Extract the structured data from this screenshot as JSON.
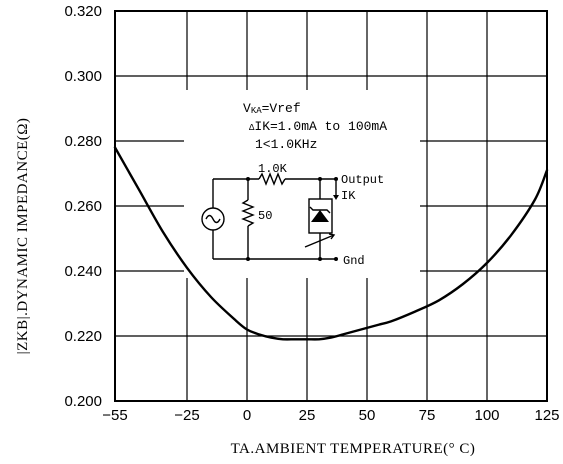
{
  "chart_data": {
    "type": "line",
    "xlabel": "TA.AMBIENT TEMPERATURE(° C)",
    "ylabel": "|ZKB|.DYNAMIC IMPEDANCE(Ω)",
    "xlim": [
      -55,
      125
    ],
    "ylim": [
      0.2,
      0.32
    ],
    "x_ticks": [
      "−55",
      "−25",
      "0",
      "25",
      "50",
      "75",
      "100",
      "125"
    ],
    "x_tick_values": [
      -55,
      -25,
      0,
      25,
      50,
      75,
      100,
      125
    ],
    "y_ticks": [
      "0.200",
      "0.220",
      "0.240",
      "0.260",
      "0.280",
      "0.300",
      "0.320"
    ],
    "y_tick_values": [
      0.2,
      0.22,
      0.24,
      0.26,
      0.28,
      0.3,
      0.32
    ],
    "grid": true,
    "series": [
      {
        "x": [
          -55,
          -45,
          -35,
          -25,
          -15,
          -5,
          0,
          5,
          10,
          15,
          20,
          25,
          30,
          35,
          40,
          45,
          50,
          55,
          60,
          70,
          80,
          90,
          100,
          110,
          120,
          125
        ],
        "y": [
          0.278,
          0.265,
          0.252,
          0.241,
          0.232,
          0.225,
          0.222,
          0.2205,
          0.2195,
          0.219,
          0.219,
          0.219,
          0.219,
          0.2195,
          0.2205,
          0.2215,
          0.2225,
          0.2235,
          0.2245,
          0.2275,
          0.231,
          0.236,
          0.2425,
          0.251,
          0.262,
          0.271
        ]
      }
    ],
    "conditions": {
      "line1_main": "V",
      "line1_sub": "KA",
      "line1_rest": "=Vref",
      "line2_sym": "Δ",
      "line2_text": "IK=1.0mA to 100mA",
      "line3": "1<1.0KHz"
    },
    "circuit": {
      "resistor_top": "1.0K",
      "resistor_left": "50",
      "output": "Output",
      "current": "IK",
      "ground": "Gnd"
    }
  }
}
